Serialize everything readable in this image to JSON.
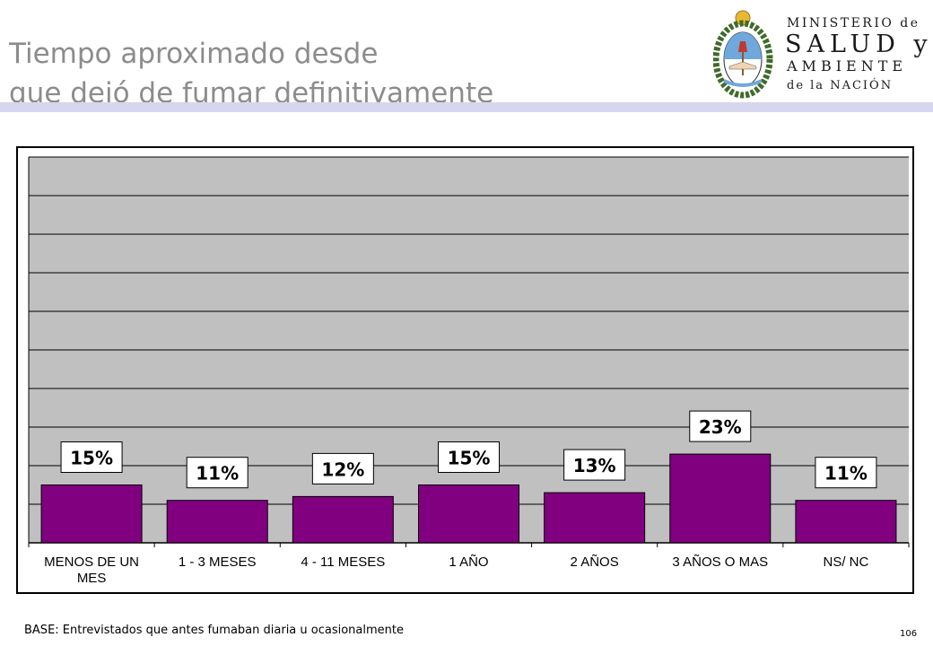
{
  "slide": {
    "title_line1": "Tiempo aproximado desde",
    "title_line2": "que dejó de fumar definitivamente",
    "footer": "BASE: Entrevistados que antes fumaban diaria u ocasionalmente",
    "page_number": "106"
  },
  "logo": {
    "line1": "MINISTERIO de",
    "line2": "SALUD y",
    "line3": "AMBIENTE",
    "line4": "de la NACIÓN"
  },
  "colors": {
    "bar": "#800080",
    "plot_bg": "#c0c0c0",
    "title": "#8c8c8c",
    "band": "#d6d6ee"
  },
  "chart_data": {
    "type": "bar",
    "categories": [
      "MENOS DE UN MES",
      "1 - 3 MESES",
      "4 - 11 MESES",
      "1 AÑO",
      "2 AÑOS",
      "3 AÑOS O MAS",
      "NS/ NC"
    ],
    "values": [
      15,
      11,
      12,
      15,
      13,
      23,
      11
    ],
    "data_labels": [
      "15%",
      "11%",
      "12%",
      "15%",
      "13%",
      "23%",
      "11%"
    ],
    "ylim": [
      0,
      100
    ],
    "grid": true,
    "legend": "none"
  }
}
